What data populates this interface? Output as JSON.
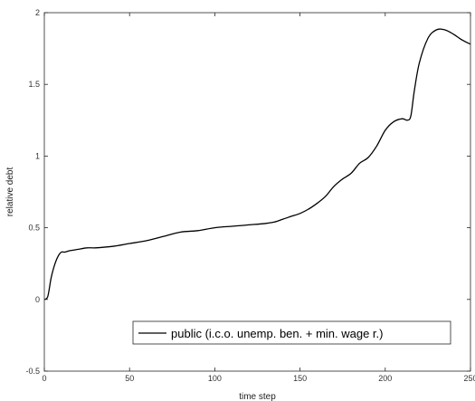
{
  "chart_data": {
    "type": "line",
    "title": "",
    "xlabel": "time step",
    "ylabel": "relative debt",
    "xlim": [
      0,
      250
    ],
    "ylim": [
      -0.5,
      2
    ],
    "xticks": [
      0,
      50,
      100,
      150,
      200,
      250
    ],
    "xtick_labels": [
      "0",
      "50",
      "100",
      "150",
      "200",
      "250"
    ],
    "yticks": [
      -0.5,
      0,
      0.5,
      1,
      1.5,
      2
    ],
    "ytick_labels": [
      "-0.5",
      "0",
      "0.5",
      "1",
      "1.5",
      "2"
    ],
    "grid": false,
    "legend_position": "bottom-right",
    "series": [
      {
        "name": "public (i.c.o. unemp. ben. + min. wage r.)",
        "color": "#000000",
        "x": [
          0,
          2,
          4,
          6,
          8,
          10,
          12,
          15,
          20,
          25,
          30,
          40,
          50,
          60,
          70,
          80,
          90,
          100,
          110,
          120,
          130,
          135,
          140,
          145,
          150,
          155,
          160,
          165,
          170,
          175,
          180,
          185,
          190,
          195,
          200,
          205,
          210,
          213,
          215,
          217,
          220,
          225,
          230,
          235,
          240,
          245,
          250
        ],
        "values": [
          0.0,
          0.02,
          0.15,
          0.24,
          0.3,
          0.33,
          0.33,
          0.34,
          0.35,
          0.36,
          0.36,
          0.37,
          0.39,
          0.41,
          0.44,
          0.47,
          0.48,
          0.5,
          0.51,
          0.52,
          0.53,
          0.54,
          0.56,
          0.58,
          0.6,
          0.63,
          0.67,
          0.72,
          0.79,
          0.84,
          0.88,
          0.95,
          0.99,
          1.07,
          1.18,
          1.24,
          1.26,
          1.25,
          1.28,
          1.45,
          1.65,
          1.82,
          1.88,
          1.88,
          1.85,
          1.81,
          1.78
        ]
      }
    ]
  }
}
